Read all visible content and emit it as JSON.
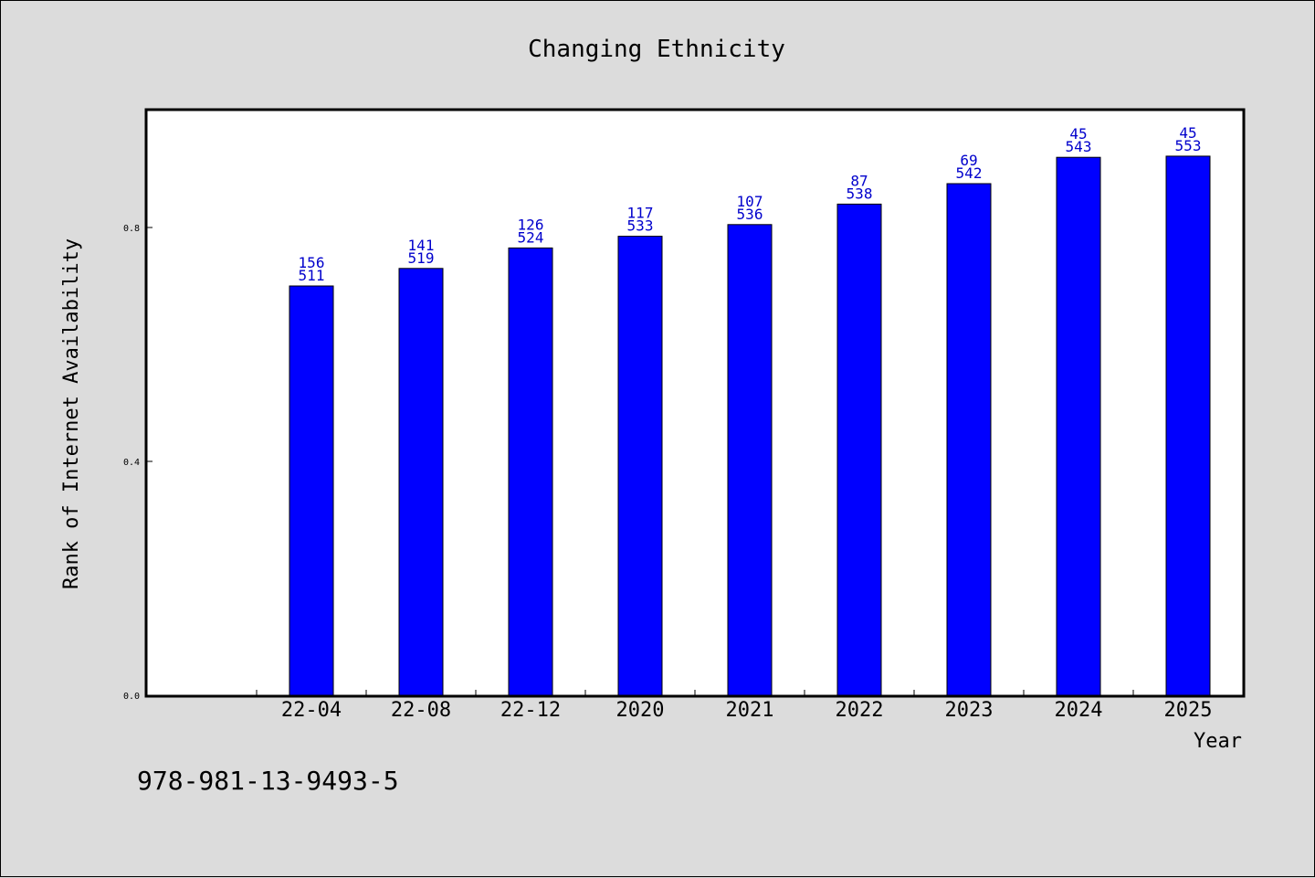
{
  "chart_data": {
    "type": "bar",
    "title": "Changing Ethnicity",
    "xlabel": "Year",
    "ylabel": "Rank of Internet Availability",
    "categories": [
      "22-04",
      "22-08",
      "22-12",
      "2020",
      "2021",
      "2022",
      "2023",
      "2024",
      "2025"
    ],
    "values": [
      0.7,
      0.73,
      0.765,
      0.785,
      0.805,
      0.84,
      0.875,
      0.92,
      0.922
    ],
    "data_labels": [
      [
        "156",
        "511"
      ],
      [
        "141",
        "519"
      ],
      [
        "126",
        "524"
      ],
      [
        "117",
        "533"
      ],
      [
        "107",
        "536"
      ],
      [
        "87",
        "538"
      ],
      [
        "69",
        "542"
      ],
      [
        "45",
        "543"
      ],
      [
        "45",
        "553"
      ]
    ],
    "yticks": [
      0.0,
      0.4,
      0.8
    ],
    "ytick_labels": [
      "0.0",
      "0.4",
      "0.8"
    ],
    "ylim": [
      0.0,
      1.0
    ],
    "grid": false,
    "legend": "none",
    "colors": {
      "bar": "#0000ff",
      "bar_label": "#0000cc",
      "background": "#dcdcdc",
      "plot_background": "#ffffff"
    }
  },
  "footer_text": "978-981-13-9493-5"
}
